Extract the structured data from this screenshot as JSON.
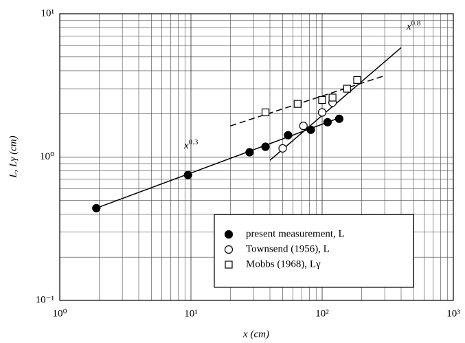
{
  "chart_data": {
    "type": "scatter",
    "log_x": true,
    "log_y": true,
    "grid": true,
    "minor_grid": true,
    "xlabel": "x (cm)",
    "ylabel": "L, Lγ (cm)",
    "xlim": [
      1,
      1000
    ],
    "ylim": [
      0.1,
      10
    ],
    "xticks": [
      {
        "value": 1,
        "label": "10⁰"
      },
      {
        "value": 10,
        "label": "10¹"
      },
      {
        "value": 100,
        "label": "10²"
      },
      {
        "value": 1000,
        "label": "10³"
      }
    ],
    "yticks": [
      {
        "value": 0.1,
        "label": "10⁻¹"
      },
      {
        "value": 1,
        "label": "10⁰"
      },
      {
        "value": 10,
        "label": "10¹"
      }
    ],
    "legend": "lower right",
    "series": [
      {
        "name": "present measurement, L",
        "marker": "filled-circle",
        "color": "#000000",
        "x": [
          1.9,
          9.5,
          28,
          37,
          55,
          82,
          110,
          135
        ],
        "values": [
          0.44,
          0.75,
          1.08,
          1.18,
          1.42,
          1.55,
          1.75,
          1.85
        ]
      },
      {
        "name": "Townsend (1956), L",
        "marker": "circle",
        "color": "#000000",
        "x": [
          50,
          72,
          100,
          120
        ],
        "values": [
          1.15,
          1.65,
          2.05,
          2.4
        ]
      },
      {
        "name": "Mobbs (1968), Lγ",
        "marker": "square",
        "color": "#000000",
        "x": [
          37,
          65,
          100,
          120,
          155,
          185
        ],
        "values": [
          2.05,
          2.35,
          2.5,
          2.6,
          3.0,
          3.45
        ]
      }
    ],
    "lines": [
      {
        "style": "solid",
        "x": [
          1.9,
          140
        ],
        "values": [
          0.44,
          1.9
        ]
      },
      {
        "style": "solid",
        "x": [
          40,
          400
        ],
        "values": [
          0.95,
          5.8
        ]
      },
      {
        "style": "dashed",
        "x": [
          20,
          300
        ],
        "values": [
          1.65,
          3.7
        ]
      }
    ],
    "annotations": [
      {
        "base": "x",
        "exponent": "0.3"
      },
      {
        "base": "x",
        "exponent": "0.8"
      }
    ]
  }
}
